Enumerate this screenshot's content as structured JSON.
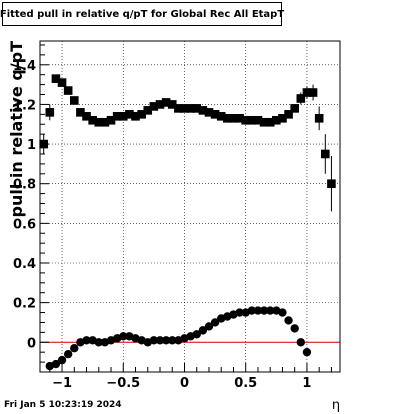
{
  "chart_data": {
    "type": "scatter",
    "title": "Fitted pull in relative q/pT  for Global Rec All EtapT",
    "xlabel": "η",
    "ylabel": "pull in relative q/pT",
    "xlim": [
      -1.18,
      1.27
    ],
    "ylim": [
      -0.15,
      1.52
    ],
    "xticks": [
      -1,
      -0.5,
      0,
      0.5,
      1
    ],
    "xtick_labels": [
      "−1",
      "−0.5",
      "0",
      "0.5",
      "1"
    ],
    "yticks": [
      0,
      0.2,
      0.4,
      0.6,
      0.8,
      1,
      1.2,
      1.4
    ],
    "ytick_labels": [
      "0",
      "0.2",
      "0.4",
      "0.6",
      "0.8",
      "1",
      "1.2",
      "1.4"
    ],
    "grid": true,
    "reference_line": {
      "y": 0,
      "color": "#dd0000"
    },
    "series": [
      {
        "marker": "square",
        "x": [
          -1.15,
          -1.1,
          -1.05,
          -1.0,
          -0.95,
          -0.9,
          -0.85,
          -0.8,
          -0.75,
          -0.7,
          -0.65,
          -0.6,
          -0.55,
          -0.5,
          -0.45,
          -0.4,
          -0.35,
          -0.3,
          -0.25,
          -0.2,
          -0.15,
          -0.1,
          -0.05,
          0.0,
          0.05,
          0.1,
          0.15,
          0.2,
          0.25,
          0.3,
          0.35,
          0.4,
          0.45,
          0.5,
          0.55,
          0.6,
          0.65,
          0.7,
          0.75,
          0.8,
          0.85,
          0.9,
          0.95,
          1.0,
          1.05,
          1.1,
          1.15
        ],
        "y": [
          1.0,
          1.16,
          1.33,
          1.31,
          1.27,
          1.22,
          1.16,
          1.14,
          1.12,
          1.11,
          1.11,
          1.12,
          1.14,
          1.14,
          1.15,
          1.14,
          1.15,
          1.17,
          1.19,
          1.2,
          1.21,
          1.2,
          1.18,
          1.18,
          1.18,
          1.18,
          1.17,
          1.16,
          1.15,
          1.14,
          1.13,
          1.13,
          1.13,
          1.12,
          1.12,
          1.12,
          1.11,
          1.11,
          1.12,
          1.13,
          1.15,
          1.18,
          1.23,
          1.26,
          1.26,
          1.13,
          0.95
        ],
        "yerr": [
          0.05,
          0.04,
          0.02,
          0.02,
          0.02,
          0.01,
          0.01,
          0.01,
          0.01,
          0.01,
          0.01,
          0.01,
          0.01,
          0.01,
          0.01,
          0.01,
          0.01,
          0.01,
          0.01,
          0.01,
          0.01,
          0.01,
          0.01,
          0.01,
          0.01,
          0.01,
          0.01,
          0.01,
          0.01,
          0.01,
          0.01,
          0.01,
          0.01,
          0.01,
          0.01,
          0.01,
          0.01,
          0.01,
          0.01,
          0.01,
          0.01,
          0.02,
          0.03,
          0.03,
          0.04,
          0.06,
          0.1
        ]
      },
      {
        "marker": "square",
        "x": [
          1.2
        ],
        "y": [
          0.8
        ],
        "yerr": [
          0.14
        ]
      },
      {
        "marker": "circle",
        "x": [
          -1.1,
          -1.05,
          -1.0,
          -0.95,
          -0.9,
          -0.85,
          -0.8,
          -0.75,
          -0.7,
          -0.65,
          -0.6,
          -0.55,
          -0.5,
          -0.45,
          -0.4,
          -0.35,
          -0.3,
          -0.25,
          -0.2,
          -0.15,
          -0.1,
          -0.05,
          0.0,
          0.05,
          0.1,
          0.15,
          0.2,
          0.25,
          0.3,
          0.35,
          0.4,
          0.45,
          0.5,
          0.55,
          0.6,
          0.65,
          0.7,
          0.75,
          0.8,
          0.85,
          0.9,
          0.95,
          1.0
        ],
        "y": [
          -0.12,
          -0.11,
          -0.09,
          -0.06,
          -0.03,
          0.0,
          0.01,
          0.01,
          0.0,
          0.0,
          0.01,
          0.02,
          0.03,
          0.03,
          0.02,
          0.01,
          0.0,
          0.01,
          0.01,
          0.01,
          0.01,
          0.01,
          0.02,
          0.03,
          0.04,
          0.06,
          0.08,
          0.1,
          0.12,
          0.13,
          0.14,
          0.15,
          0.15,
          0.16,
          0.16,
          0.16,
          0.16,
          0.16,
          0.15,
          0.11,
          0.07,
          0.0,
          -0.05
        ],
        "yerr": []
      }
    ]
  },
  "footer": {
    "date": "Fri Jan  5 10:23:19 2024"
  }
}
